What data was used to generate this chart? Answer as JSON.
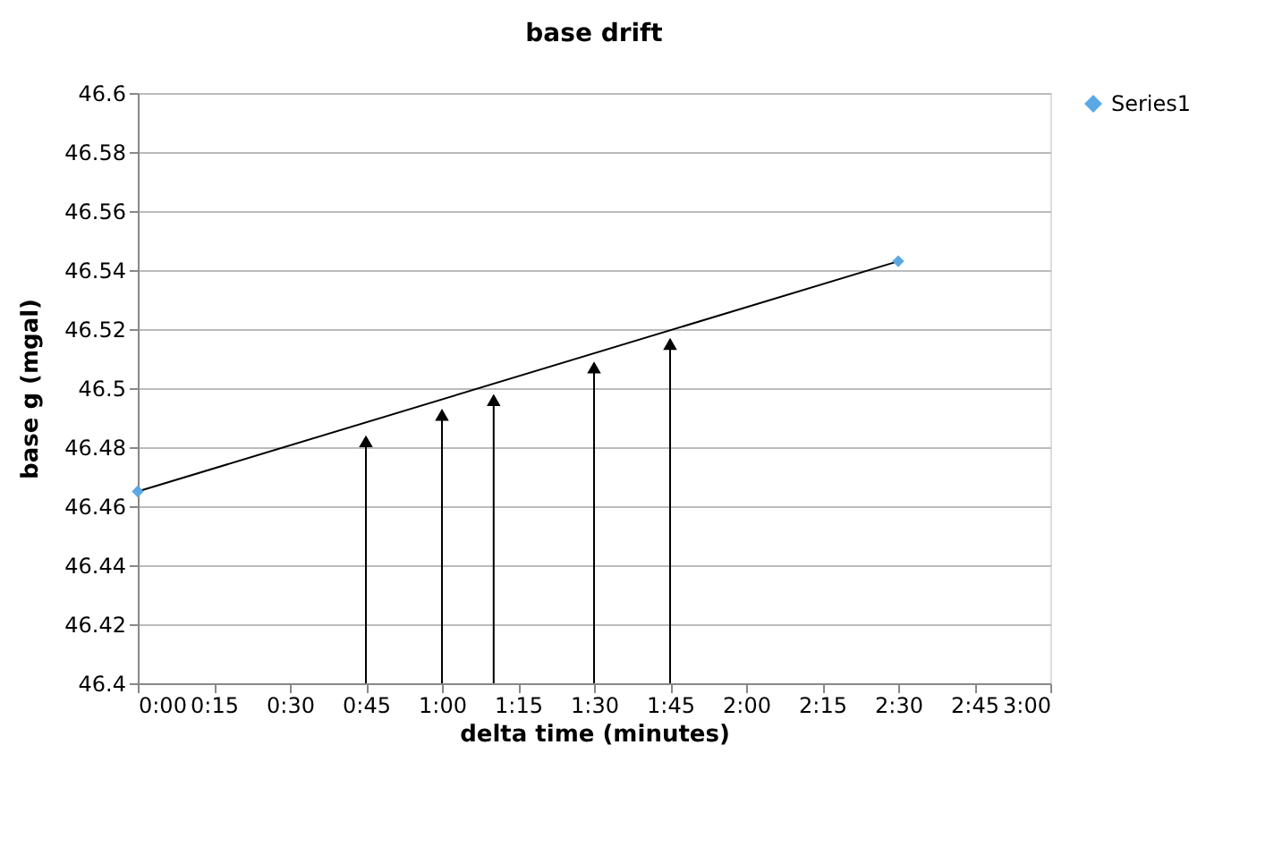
{
  "chart_data": {
    "type": "scatter",
    "title": "base drift",
    "xlabel": "delta time (minutes)",
    "ylabel": "base g (mgal)",
    "xlim": [
      0,
      3
    ],
    "xticks": [
      {
        "value": 0,
        "label": "0:00"
      },
      {
        "value": 0.25,
        "label": "0:15"
      },
      {
        "value": 0.5,
        "label": "0:30"
      },
      {
        "value": 0.75,
        "label": "0:45"
      },
      {
        "value": 1,
        "label": "1:00"
      },
      {
        "value": 1.25,
        "label": "1:15"
      },
      {
        "value": 1.5,
        "label": "1:30"
      },
      {
        "value": 1.75,
        "label": "1:45"
      },
      {
        "value": 2,
        "label": "2:00"
      },
      {
        "value": 2.25,
        "label": "2:15"
      },
      {
        "value": 2.5,
        "label": "2:30"
      },
      {
        "value": 2.75,
        "label": "2:45"
      },
      {
        "value": 3,
        "label": "3:00"
      }
    ],
    "ylim": [
      46.4,
      46.6
    ],
    "yticks": [
      46.4,
      46.42,
      46.44,
      46.46,
      46.48,
      46.5,
      46.52,
      46.54,
      46.56,
      46.58,
      46.6
    ],
    "grid": "y",
    "legend": "right",
    "marker": "diamond",
    "series": [
      {
        "type": "line",
        "color": "#000000",
        "marker": "none",
        "line_style": "solid",
        "x": [
          0,
          2.5
        ],
        "values": [
          46.465,
          46.543
        ]
      },
      {
        "type": "lollipop",
        "color": "#000000",
        "marker": "triangle",
        "x": [
          0.75,
          1.0,
          1.17,
          1.5,
          1.75
        ],
        "values": [
          46.482,
          46.491,
          46.496,
          46.507,
          46.515
        ]
      },
      {
        "name": "Series1",
        "color": "#5aa9e6",
        "x": [
          0,
          2.5
        ],
        "values": [
          46.465,
          46.543
        ]
      }
    ]
  }
}
